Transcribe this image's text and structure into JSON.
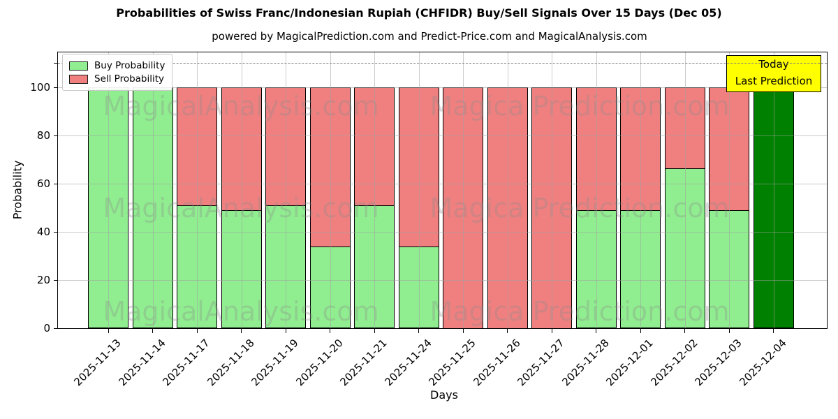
{
  "title": "Probabilities of Swiss Franc/Indonesian Rupiah (CHFIDR) Buy/Sell Signals Over 15 Days (Dec 05)",
  "subtitle": "powered by MagicalPrediction.com and Predict-Price.com and MagicalAnalysis.com",
  "axes": {
    "x_label": "Days",
    "y_label": "Probability",
    "y_ticks": [
      0,
      20,
      40,
      60,
      80,
      100
    ],
    "ylim": [
      0,
      114.5
    ],
    "grid": true
  },
  "legend": {
    "items": [
      {
        "label": "Buy Probability",
        "color": "#90ee90"
      },
      {
        "label": "Sell Probability",
        "color": "#f08080"
      }
    ]
  },
  "annotation": {
    "line1": "Today",
    "line2": "Last Prediction",
    "bg_color": "#ffff00"
  },
  "watermarks": {
    "left_text": "MagicalAnalysis.com",
    "right_text": "Magica Prediction.com"
  },
  "colors": {
    "buy": "#90ee90",
    "sell": "#f08080",
    "today_bar": "#008000",
    "bar_edge": "#000000",
    "annotation_bg": "#ffff00"
  },
  "chart_data": {
    "type": "bar",
    "stacked": true,
    "title": "Probabilities of Swiss Franc/Indonesian Rupiah (CHFIDR) Buy/Sell Signals Over 15 Days (Dec 05)",
    "xlabel": "Days",
    "ylabel": "Probability",
    "ylim": [
      0,
      114.5
    ],
    "grid": true,
    "legend_position": "upper-left",
    "dashed_threshold_y": 110,
    "categories": [
      "2025-11-13",
      "2025-11-14",
      "2025-11-17",
      "2025-11-18",
      "2025-11-19",
      "2025-11-20",
      "2025-11-21",
      "2025-11-24",
      "2025-11-25",
      "2025-11-26",
      "2025-11-27",
      "2025-11-28",
      "2025-12-01",
      "2025-12-02",
      "2025-12-03",
      "2025-12-04"
    ],
    "series": [
      {
        "name": "Buy Probability",
        "color": "#90ee90",
        "values": [
          100,
          100,
          51,
          49,
          51,
          34,
          51,
          34,
          0,
          0,
          0,
          49,
          49,
          66.5,
          49,
          100
        ]
      },
      {
        "name": "Sell Probability",
        "color": "#f08080",
        "values": [
          0,
          0,
          49,
          51,
          49,
          66,
          49,
          66,
          100,
          100,
          100,
          51,
          51,
          33.5,
          51,
          0
        ]
      }
    ],
    "special_bars": [
      {
        "index": 15,
        "color": "#008000",
        "note": "Today / Last Prediction"
      }
    ]
  }
}
